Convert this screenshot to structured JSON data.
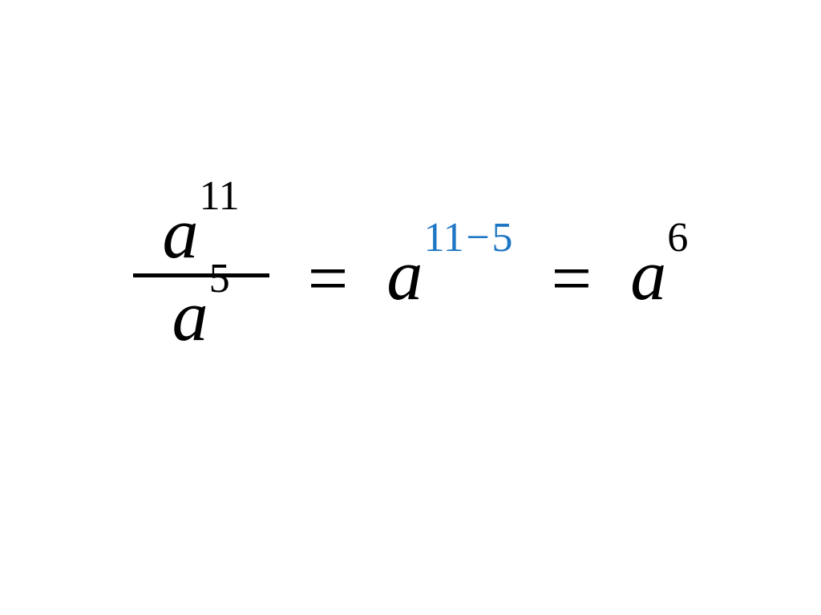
{
  "equation": {
    "background_color": "#ffffff",
    "text_color": "#000000",
    "highlight_color": "#1f77c4",
    "base_fontsize": 90,
    "sup_relative_fontsize": 0.58,
    "font_family": "Cambria Math, Times New Roman, serif",
    "font_style": "italic",
    "fraction": {
      "numerator": {
        "base": "a",
        "exp": "11"
      },
      "denominator": {
        "base": "a",
        "exp": "5"
      },
      "line_width": 170,
      "line_thickness": 5
    },
    "equals1": "=",
    "middle_term": {
      "base": "a",
      "exp_prefix": "11",
      "exp_op": "−",
      "exp_suffix": "5",
      "exp_color": "#1f77c4"
    },
    "equals2": "=",
    "result_term": {
      "base": "a",
      "exp": "6"
    }
  }
}
